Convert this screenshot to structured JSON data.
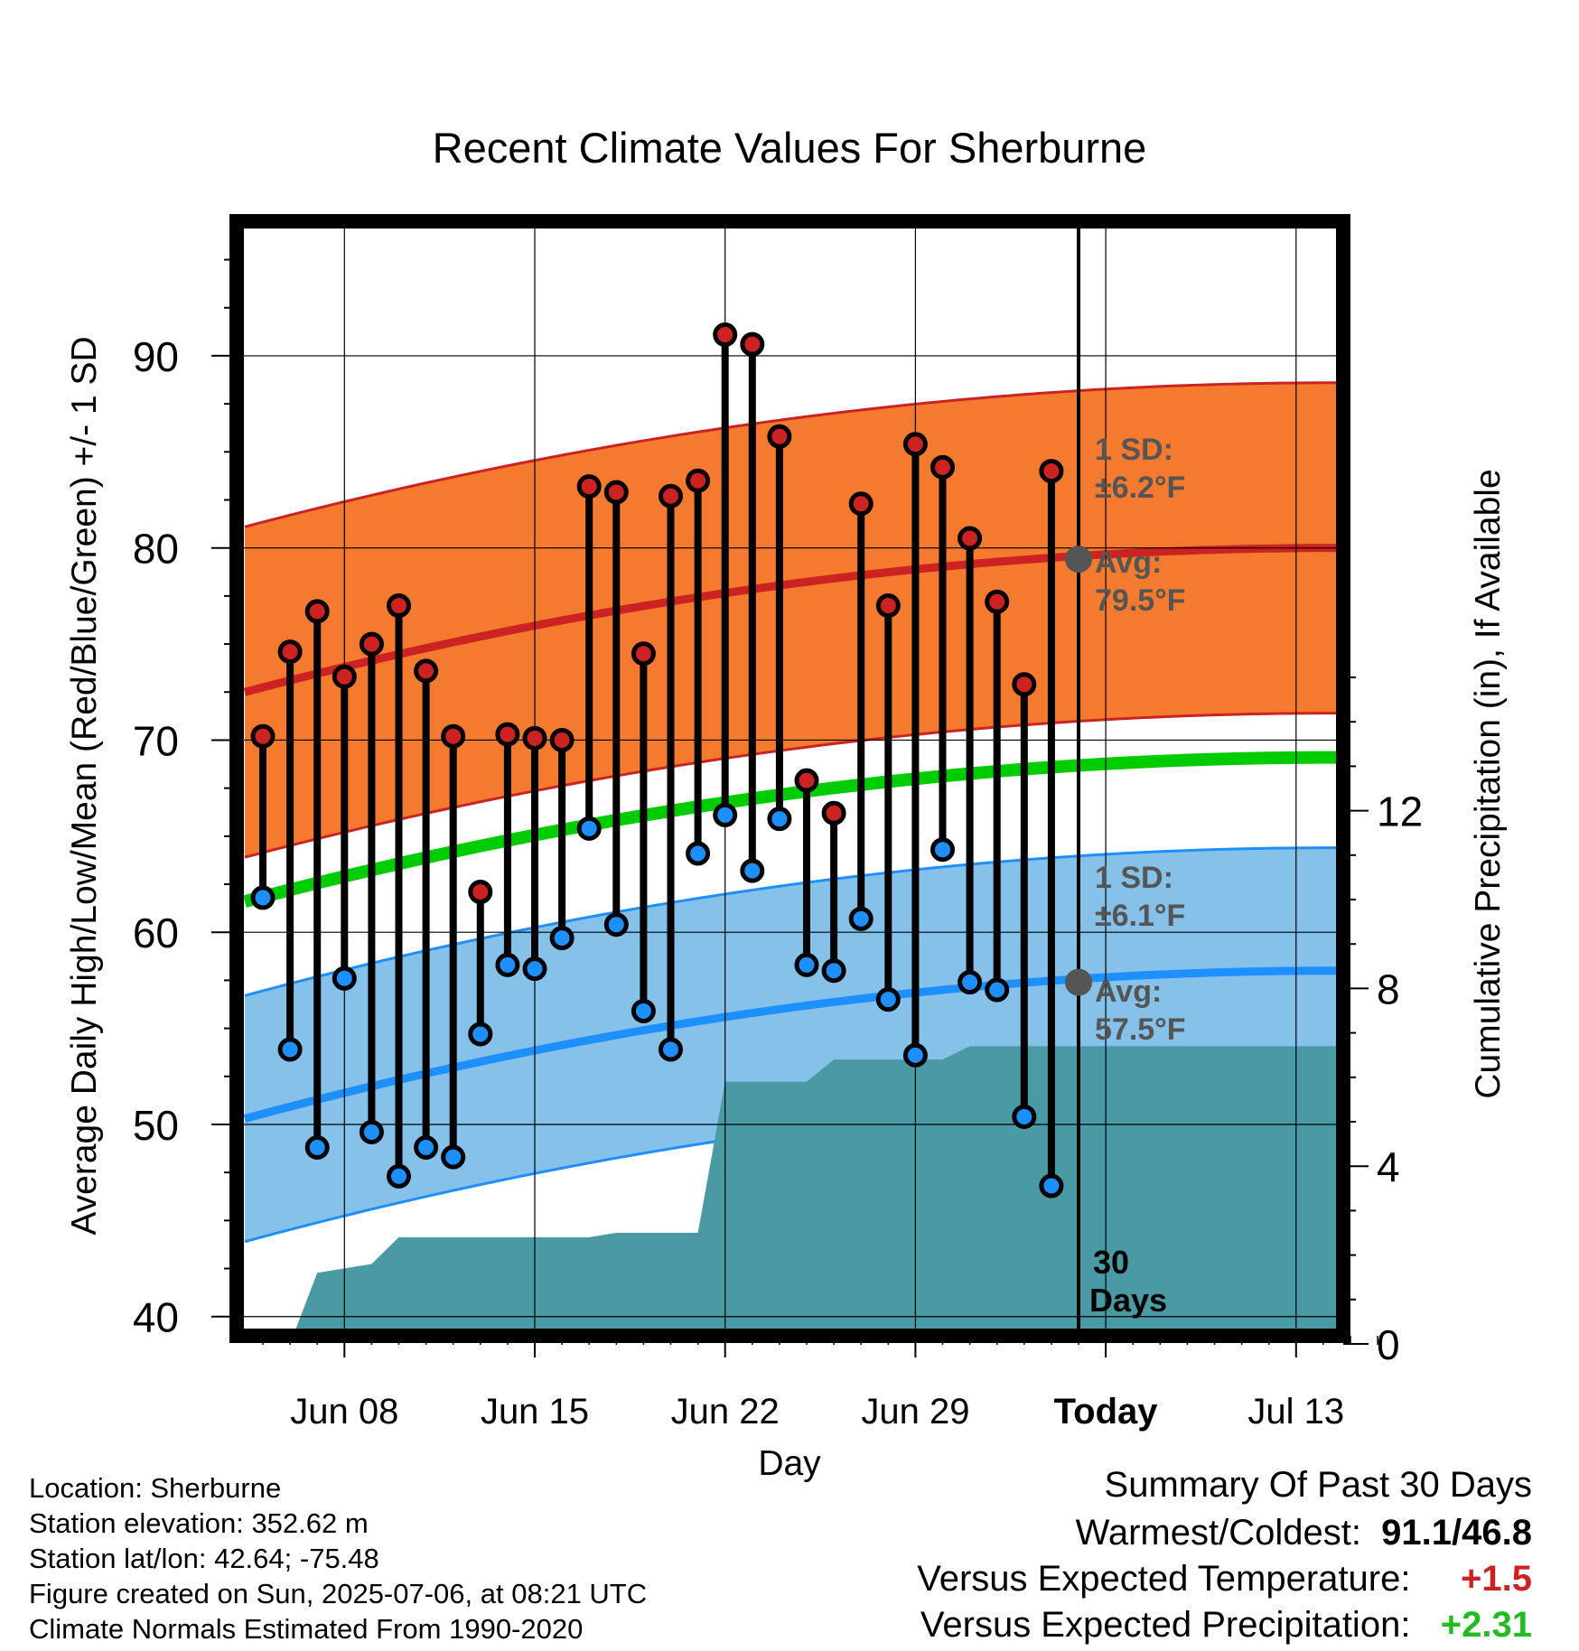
{
  "chart_data": {
    "type": "line",
    "title": "Recent Climate Values For Sherburne",
    "xlabel": "Day",
    "ylabel_left": "Average Daily High/Low/Mean (Red/Blue/Green) +/- 1 SD",
    "ylabel_right": "Cumulative Precipitation (in), If Available",
    "x_tick_labels": [
      "Jun 08",
      "Jun 15",
      "Jun 22",
      "Jun 29",
      "Today",
      "Jul 13"
    ],
    "y_left_ticks": [
      40,
      50,
      60,
      70,
      80,
      90
    ],
    "y_left_range": [
      39,
      97
    ],
    "y_right_ticks": [
      0,
      4,
      8,
      12
    ],
    "grid": true,
    "days": [
      "Jun 05",
      "Jun 06",
      "Jun 07",
      "Jun 08",
      "Jun 09",
      "Jun 10",
      "Jun 11",
      "Jun 12",
      "Jun 13",
      "Jun 14",
      "Jun 15",
      "Jun 16",
      "Jun 17",
      "Jun 18",
      "Jun 19",
      "Jun 20",
      "Jun 21",
      "Jun 22",
      "Jun 23",
      "Jun 24",
      "Jun 25",
      "Jun 26",
      "Jun 27",
      "Jun 28",
      "Jun 29",
      "Jun 30",
      "Jul 01",
      "Jul 02",
      "Jul 03",
      "Jul 04",
      "Jul 05"
    ],
    "daily_high": [
      70.2,
      74.6,
      76.7,
      73.3,
      75.0,
      77.0,
      73.6,
      70.2,
      62.1,
      70.3,
      70.1,
      70.0,
      83.2,
      82.9,
      74.5,
      82.7,
      83.5,
      91.1,
      90.6,
      85.8,
      67.9,
      66.2,
      82.3,
      77.0,
      85.4,
      84.2,
      80.5,
      77.2,
      72.9,
      84.0,
      null
    ],
    "daily_low": [
      61.8,
      53.9,
      48.8,
      57.6,
      49.6,
      47.3,
      48.8,
      48.3,
      54.7,
      58.3,
      58.1,
      59.7,
      65.4,
      60.4,
      55.9,
      53.9,
      64.1,
      66.1,
      63.2,
      65.9,
      58.3,
      58.0,
      60.7,
      56.5,
      53.6,
      64.3,
      57.4,
      57.0,
      50.4,
      46.8,
      null
    ],
    "normal_high_avg_today": "79.5°F",
    "normal_low_avg_today": "57.5°F",
    "normal_high_sd": "±6.2°F",
    "normal_low_sd": "±6.1°F",
    "normal_high_curve": [
      72.5,
      80.0
    ],
    "normal_low_curve": [
      50.3,
      58.0
    ],
    "normal_mean_curve": [
      61.6,
      69.1
    ],
    "cumulative_precip_in": [
      0.0,
      0.0,
      1.6,
      1.7,
      1.8,
      2.4,
      2.4,
      2.4,
      2.4,
      2.4,
      2.4,
      2.4,
      2.4,
      2.5,
      2.5,
      2.5,
      2.5,
      5.9,
      5.9,
      5.9,
      5.9,
      6.4,
      6.4,
      6.4,
      6.4,
      6.4,
      6.7,
      6.7,
      6.7,
      6.7,
      6.7
    ],
    "annotations": {
      "sd_label": "1 SD:",
      "avg_label": "Avg:",
      "window_label_line1": "30",
      "window_label_line2": "Days"
    },
    "colors": {
      "high": "#cc2222",
      "low": "#1e8fff",
      "mean": "#00cc00",
      "high_band": "#f47a30",
      "low_band": "#85c1e8",
      "precip": "#4a9aa5",
      "marker_avg": "#555555"
    }
  },
  "footer": {
    "location": "Location: Sherburne",
    "elevation": "Station elevation: 352.62 m",
    "latlon": "Station lat/lon: 42.64; -75.48",
    "created": "Figure created on Sun, 2025-07-06, at 08:21 UTC",
    "normals": "Climate Normals Estimated From 1990-2020"
  },
  "summary": {
    "heading": "Summary Of Past 30 Days",
    "warmest_label": "Warmest/Coldest:",
    "warmest_value": "91.1/46.8",
    "temp_label": "Versus Expected Temperature:",
    "temp_value": "+1.5",
    "precip_label": "Versus Expected Precipitation:",
    "precip_value": "+2.31",
    "temp_color": "#cc2222",
    "precip_color": "#22bb22"
  }
}
